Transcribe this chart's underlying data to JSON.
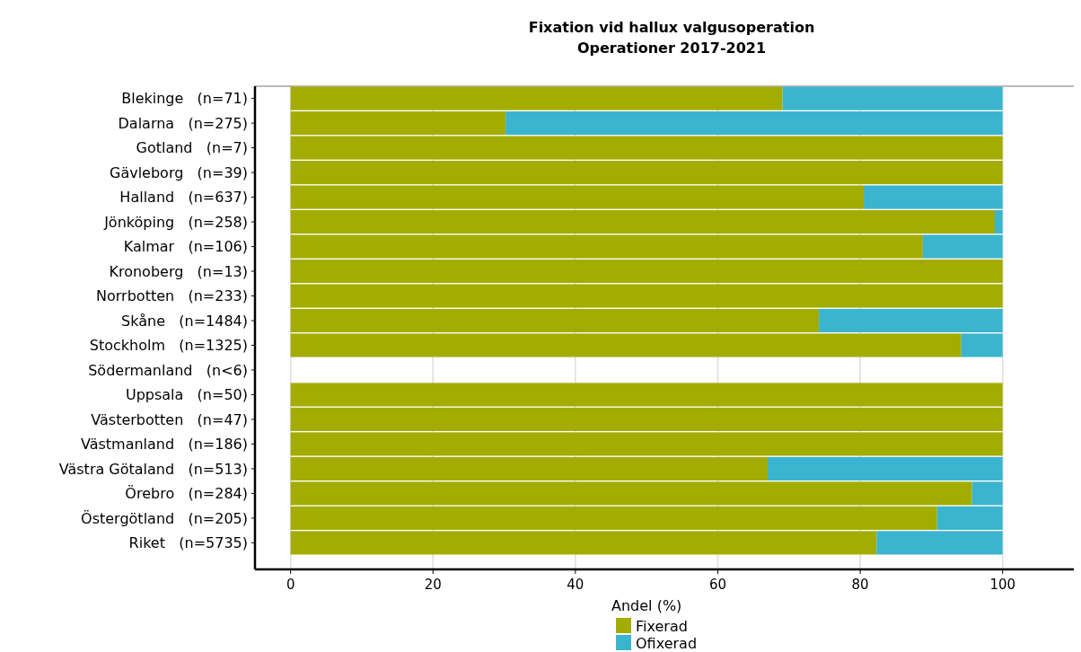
{
  "chart_data": {
    "type": "bar",
    "orientation": "horizontal",
    "stacked": true,
    "title": "Fixation vid hallux valgusoperation",
    "subtitle": "Operationer 2017-2021",
    "xlabel": "Andel (%)",
    "categories": [
      "Blekinge   (n=71)",
      "Dalarna   (n=275)",
      "Gotland   (n=7)",
      "Gävleborg   (n=39)",
      "Halland   (n=637)",
      "Jönköping   (n=258)",
      "Kalmar   (n=106)",
      "Kronoberg   (n=13)",
      "Norrbotten   (n=233)",
      "Skåne   (n=1484)",
      "Stockholm   (n=1325)",
      "Södermanland   (n<6)",
      "Uppsala   (n=50)",
      "Västerbotten   (n=47)",
      "Västmanland   (n=186)",
      "Västra Götaland   (n=513)",
      "Örebro   (n=284)",
      "Östergötland   (n=205)",
      "Riket   (n=5735)"
    ],
    "series": [
      {
        "name": "Fixerad",
        "color": "#a3ac00",
        "values": [
          69.1,
          30.2,
          100,
          100,
          80.5,
          98.9,
          88.8,
          100,
          100,
          74.2,
          94.2,
          null,
          100,
          100,
          100,
          67.0,
          95.7,
          90.8,
          82.3
        ]
      },
      {
        "name": "Ofixerad",
        "color": "#3bb4cf",
        "values": [
          30.9,
          69.8,
          0,
          0,
          19.5,
          1.1,
          11.2,
          0,
          0,
          25.8,
          5.8,
          null,
          0,
          0,
          0,
          33.0,
          4.3,
          9.2,
          17.7
        ]
      }
    ],
    "xlim": [
      -5,
      110
    ],
    "xticks": [
      0,
      20,
      40,
      60,
      80,
      100
    ],
    "grid": "x",
    "legend": "bottom"
  }
}
